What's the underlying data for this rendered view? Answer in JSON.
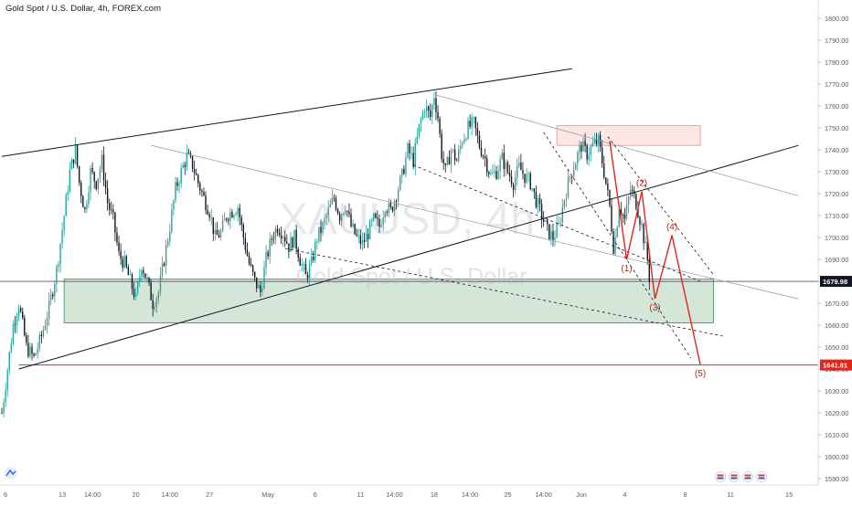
{
  "header": {
    "title": "Gold Spot / U.S. Dollar, 4h, FOREX.com"
  },
  "watermark": {
    "symbol": "XAUUSD, 4h",
    "name": "Gold Spot / U.S. Dollar"
  },
  "colors": {
    "up": "#26a69a",
    "down": "#131722",
    "support_zone": "#3b8b4f",
    "resistance_zone": "#f28b8b",
    "wave": "#e1251b",
    "axis_text": "#555b66"
  },
  "chart_data": {
    "type": "candlestick",
    "title": "Gold Spot / U.S. Dollar, 4h, FOREX.com",
    "ylim": [
      1585,
      1805
    ],
    "y_ticks": [
      1590,
      1600,
      1610,
      1620,
      1630,
      1640,
      1650,
      1660,
      1670,
      1680,
      1690,
      1700,
      1710,
      1720,
      1730,
      1740,
      1750,
      1760,
      1770,
      1780,
      1790,
      1800
    ],
    "y_tick_labels": [
      "1590.00",
      "1600.00",
      "1610.00",
      "1620.00",
      "1630.00",
      "1640.00",
      "1650.00",
      "1660.00",
      "1670.00",
      "1680.00",
      "1690.00",
      "1700.00",
      "1710.00",
      "1720.00",
      "1730.00",
      "1740.00",
      "1750.00",
      "1760.00",
      "1770.00",
      "1780.00",
      "1790.00",
      "1800.00"
    ],
    "x_ticks": [
      {
        "label": "6",
        "bar": 2
      },
      {
        "label": "13",
        "bar": 32
      },
      {
        "label": "14:00",
        "bar": 48
      },
      {
        "label": "20",
        "bar": 71
      },
      {
        "label": "14:00",
        "bar": 89
      },
      {
        "label": "27",
        "bar": 110
      },
      {
        "label": "May",
        "bar": 141
      },
      {
        "label": "6",
        "bar": 166
      },
      {
        "label": "11",
        "bar": 190
      },
      {
        "label": "14:00",
        "bar": 208
      },
      {
        "label": "18",
        "bar": 229
      },
      {
        "label": "14:00",
        "bar": 248
      },
      {
        "label": "25",
        "bar": 268
      },
      {
        "label": "14:00",
        "bar": 287
      },
      {
        "label": "Jun",
        "bar": 307
      },
      {
        "label": "4",
        "bar": 330
      },
      {
        "label": "8",
        "bar": 362
      },
      {
        "label": "11",
        "bar": 386
      },
      {
        "label": "15",
        "bar": 417
      }
    ],
    "last_price": 1679.98,
    "last_price_label": "1679.98",
    "target_price": 1641.81,
    "target_price_label": "1641.81",
    "close_path": [
      [
        0,
        1620
      ],
      [
        3,
        1640
      ],
      [
        6,
        1660
      ],
      [
        9,
        1670
      ],
      [
        13,
        1650
      ],
      [
        17,
        1645
      ],
      [
        21,
        1655
      ],
      [
        25,
        1668
      ],
      [
        29,
        1685
      ],
      [
        33,
        1710
      ],
      [
        36,
        1730
      ],
      [
        39,
        1740
      ],
      [
        41,
        1725
      ],
      [
        44,
        1712
      ],
      [
        47,
        1730
      ],
      [
        50,
        1725
      ],
      [
        53,
        1735
      ],
      [
        56,
        1716
      ],
      [
        59,
        1708
      ],
      [
        62,
        1692
      ],
      [
        65,
        1688
      ],
      [
        68,
        1680
      ],
      [
        71,
        1672
      ],
      [
        74,
        1688
      ],
      [
        77,
        1680
      ],
      [
        80,
        1670
      ],
      [
        83,
        1675
      ],
      [
        86,
        1690
      ],
      [
        89,
        1705
      ],
      [
        92,
        1722
      ],
      [
        95,
        1730
      ],
      [
        98,
        1737
      ],
      [
        101,
        1733
      ],
      [
        104,
        1725
      ],
      [
        107,
        1718
      ],
      [
        110,
        1712
      ],
      [
        113,
        1700
      ],
      [
        116,
        1702
      ],
      [
        119,
        1710
      ],
      [
        122,
        1712
      ],
      [
        125,
        1714
      ],
      [
        128,
        1700
      ],
      [
        131,
        1688
      ],
      [
        134,
        1680
      ],
      [
        137,
        1675
      ],
      [
        140,
        1690
      ],
      [
        143,
        1700
      ],
      [
        146,
        1705
      ],
      [
        149,
        1702
      ],
      [
        152,
        1696
      ],
      [
        155,
        1700
      ],
      [
        158,
        1690
      ],
      [
        161,
        1682
      ],
      [
        164,
        1688
      ],
      [
        167,
        1700
      ],
      [
        170,
        1705
      ],
      [
        173,
        1712
      ],
      [
        176,
        1718
      ],
      [
        179,
        1710
      ],
      [
        182,
        1715
      ],
      [
        185,
        1705
      ],
      [
        188,
        1700
      ],
      [
        191,
        1697
      ],
      [
        194,
        1702
      ],
      [
        197,
        1708
      ],
      [
        200,
        1705
      ],
      [
        203,
        1715
      ],
      [
        206,
        1712
      ],
      [
        209,
        1720
      ],
      [
        212,
        1728
      ],
      [
        215,
        1740
      ],
      [
        218,
        1735
      ],
      [
        221,
        1750
      ],
      [
        224,
        1760
      ],
      [
        227,
        1755
      ],
      [
        229,
        1765
      ],
      [
        231,
        1755
      ],
      [
        233,
        1738
      ],
      [
        235,
        1730
      ],
      [
        238,
        1740
      ],
      [
        241,
        1735
      ],
      [
        244,
        1745
      ],
      [
        247,
        1750
      ],
      [
        250,
        1752
      ],
      [
        253,
        1742
      ],
      [
        256,
        1736
      ],
      [
        259,
        1728
      ],
      [
        262,
        1730
      ],
      [
        265,
        1736
      ],
      [
        268,
        1730
      ],
      [
        271,
        1725
      ],
      [
        274,
        1732
      ],
      [
        277,
        1728
      ],
      [
        280,
        1725
      ],
      [
        283,
        1717
      ],
      [
        286,
        1710
      ],
      [
        289,
        1703
      ],
      [
        292,
        1700
      ],
      [
        295,
        1705
      ],
      [
        298,
        1718
      ],
      [
        301,
        1728
      ],
      [
        304,
        1735
      ],
      [
        307,
        1742
      ],
      [
        310,
        1738
      ],
      [
        313,
        1742
      ],
      [
        316,
        1744
      ],
      [
        319,
        1730
      ],
      [
        322,
        1714
      ],
      [
        324,
        1696
      ],
      [
        325,
        1700
      ],
      [
        327,
        1715
      ],
      [
        330,
        1708
      ],
      [
        333,
        1722
      ],
      [
        336,
        1716
      ],
      [
        339,
        1705
      ],
      [
        342,
        1690
      ],
      [
        343,
        1682
      ]
    ],
    "trendlines": [
      {
        "name": "upper-channel",
        "p1": [
          0,
          1737
        ],
        "p2": [
          302,
          1777
        ],
        "style": "solid",
        "color": "#131722",
        "width": 1
      },
      {
        "name": "rising-support",
        "p1": [
          9,
          1640
        ],
        "p2": [
          422,
          1742
        ],
        "style": "solid",
        "color": "#131722",
        "width": 1
      },
      {
        "name": "descending-1",
        "p1": [
          79,
          1742
        ],
        "p2": [
          422,
          1672
        ],
        "style": "solid",
        "color": "#9aa0a6",
        "width": 0.8
      },
      {
        "name": "descending-2",
        "p1": [
          230,
          1765
        ],
        "p2": [
          422,
          1719
        ],
        "style": "solid",
        "color": "#9aa0a6",
        "width": 0.8
      },
      {
        "name": "channel-dashed-upper",
        "p1": [
          218,
          1733
        ],
        "p2": [
          370,
          1680
        ],
        "style": "dashed",
        "color": "#131722",
        "width": 0.8
      },
      {
        "name": "channel-dashed-lower",
        "p1": [
          287,
          1748
        ],
        "p2": [
          365,
          1645
        ],
        "style": "dashed",
        "color": "#131722",
        "width": 0.8
      },
      {
        "name": "channel-dashed-lower-2",
        "p1": [
          150,
          1695
        ],
        "p2": [
          382,
          1655
        ],
        "style": "dashed",
        "color": "#131722",
        "width": 0.8
      },
      {
        "name": "channel-dashed-upper-2",
        "p1": [
          321,
          1746
        ],
        "p2": [
          377,
          1683
        ],
        "style": "dashed",
        "color": "#131722",
        "width": 0.8
      }
    ],
    "zones": [
      {
        "name": "support-zone",
        "x0": 33,
        "x1": 377,
        "y0": 1661,
        "y1": 1681,
        "color": "#3b8b4f"
      },
      {
        "name": "resistance-zone",
        "x0": 294,
        "x1": 370,
        "y0": 1742,
        "y1": 1751,
        "color": "#f28b8b"
      }
    ],
    "wave": [
      {
        "label": "(1)",
        "bar": 331,
        "price": 1690,
        "label_dy": 1
      },
      {
        "label": "(2)",
        "bar": 339,
        "price": 1721,
        "label_dy": -1
      },
      {
        "label": "(3)",
        "bar": 346,
        "price": 1672,
        "label_dy": 1
      },
      {
        "label": "(4)",
        "bar": 355,
        "price": 1701,
        "label_dy": -1
      },
      {
        "label": "(5)",
        "bar": 370,
        "price": 1642,
        "label_dy": 1
      }
    ],
    "wave_start": {
      "bar": 322,
      "price": 1744
    }
  }
}
